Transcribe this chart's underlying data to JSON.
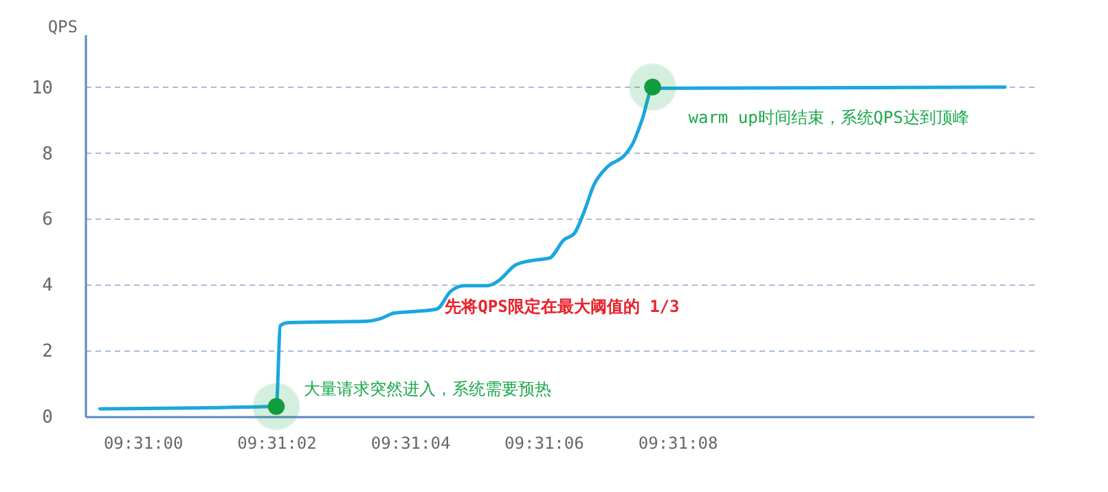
{
  "chart_data": {
    "type": "line",
    "ylabel": "QPS",
    "x": [
      9.516489,
      9.517222,
      9.517239,
      9.517272,
      9.517597,
      9.517656,
      9.517713,
      9.517786,
      9.517889,
      9.517947,
      9.518003,
      9.5181,
      9.518142,
      9.518217,
      9.518283,
      9.518358,
      9.518417,
      9.518461,
      9.5185,
      9.518542,
      9.518597,
      9.518672,
      9.518703,
      9.518742,
      9.518786,
      9.52025
    ],
    "series": [
      {
        "color": "#1ca6e0",
        "values": [
          0.23,
          0.3,
          2.76,
          2.85,
          2.89,
          2.97,
          3.14,
          3.18,
          3.26,
          3.8,
          3.97,
          3.97,
          4.1,
          4.6,
          4.73,
          4.81,
          5.36,
          5.56,
          6.19,
          7.03,
          7.57,
          7.95,
          8.28,
          9.0,
          9.96,
          10
        ]
      }
    ],
    "xlim": [
      9.516428,
      9.52037
    ],
    "xticks": [
      {
        "value": 9.516667,
        "label": "09:31:00"
      },
      {
        "value": 9.517222,
        "label": "09:31:02"
      },
      {
        "value": 9.517778,
        "label": "09:31:04"
      },
      {
        "value": 9.518333,
        "label": "09:31:06"
      },
      {
        "value": 9.518889,
        "label": "09:31:08"
      }
    ],
    "ylim": [
      0,
      11.6
    ],
    "yticks": [
      0,
      2,
      4,
      6,
      8,
      10
    ],
    "grid": "y",
    "annotations": [
      {
        "text": "大量请求突然进入，系统需要预热",
        "x": 9.517222,
        "y": 0.3
      },
      {
        "text": "warm up时间结束，系统QPS达到顶峰",
        "x": 9.518786,
        "y": 10
      },
      {
        "text": "先将QPS限定在最大阈值的 1/3",
        "x": 9.518003,
        "y": 3.97
      }
    ]
  }
}
